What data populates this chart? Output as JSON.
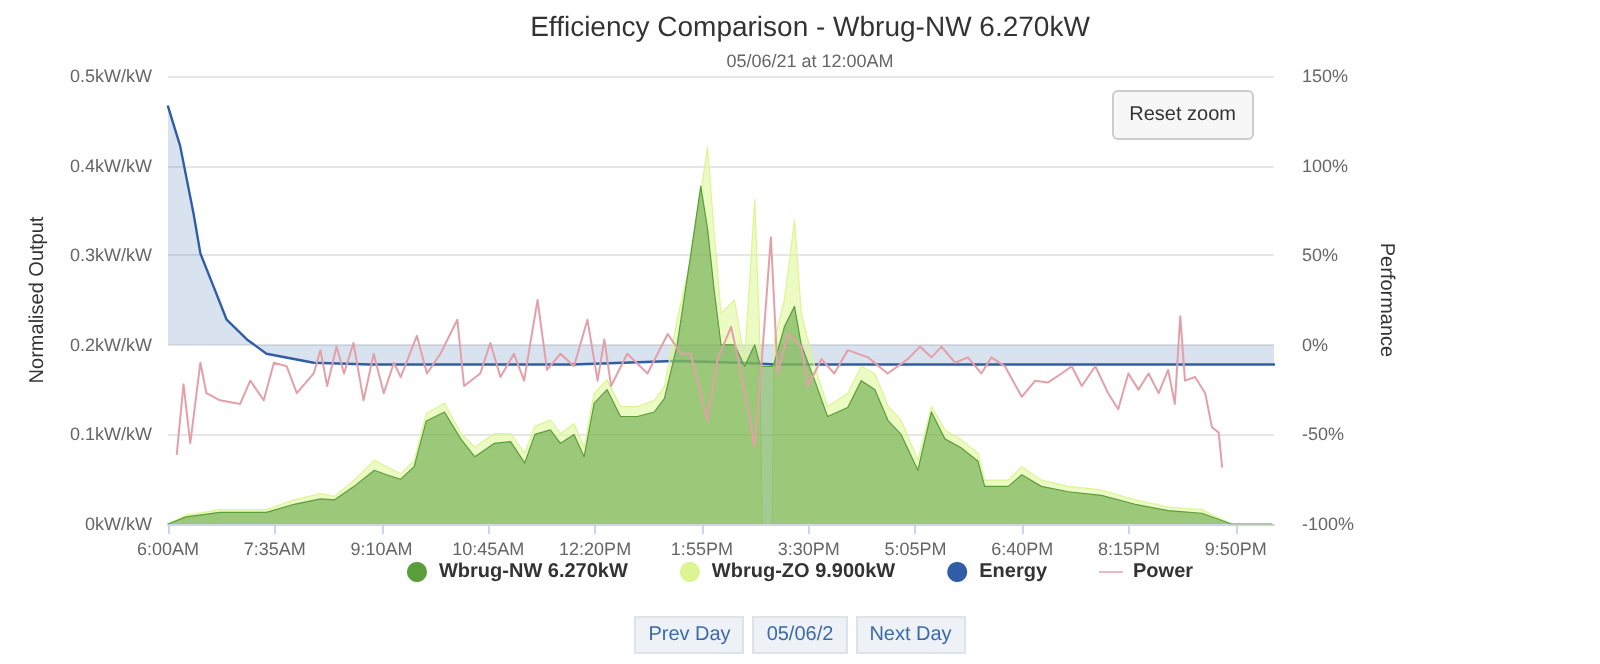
{
  "chart_data": {
    "type": "area",
    "title": "Efficiency Comparison - Wbrug-NW 6.270kW",
    "subtitle": "05/06/21 at 12:00AM",
    "ylabel": "Normalised Output",
    "y2label": "Performance",
    "annotations": [
      "Reset zoom",
      "Prev Day",
      "05/06/2",
      "Next Day"
    ],
    "xlim": [
      6,
      22.4
    ],
    "xticks": [
      {
        "value": 6,
        "label": "6:00AM"
      },
      {
        "value": 7.5833,
        "label": "7:35AM"
      },
      {
        "value": 9.1667,
        "label": "9:10AM"
      },
      {
        "value": 10.75,
        "label": "10:45AM"
      },
      {
        "value": 12.3333,
        "label": "12:20PM"
      },
      {
        "value": 13.9167,
        "label": "1:55PM"
      },
      {
        "value": 15.5,
        "label": "3:30PM"
      },
      {
        "value": 17.0833,
        "label": "5:05PM"
      },
      {
        "value": 18.6667,
        "label": "6:40PM"
      },
      {
        "value": 20.25,
        "label": "8:15PM"
      },
      {
        "value": 21.8333,
        "label": "9:50PM"
      }
    ],
    "ylim": [
      0,
      0.5
    ],
    "yticks": [
      {
        "value": 0,
        "label": "0kW/kW"
      },
      {
        "value": 0.1,
        "label": "0.1kW/kW"
      },
      {
        "value": 0.2,
        "label": "0.2kW/kW"
      },
      {
        "value": 0.3,
        "label": "0.3kW/kW"
      },
      {
        "value": 0.4,
        "label": "0.4kW/kW"
      },
      {
        "value": 0.5,
        "label": "0.5kW/kW"
      }
    ],
    "y2lim": [
      -100,
      150
    ],
    "y2ticks": [
      {
        "value": -100,
        "label": "-100%"
      },
      {
        "value": -50,
        "label": "-50%"
      },
      {
        "value": 0,
        "label": "0%"
      },
      {
        "value": 50,
        "label": "50%"
      },
      {
        "value": 100,
        "label": "100%"
      },
      {
        "value": 150,
        "label": "150%"
      }
    ],
    "grid": "y",
    "legend": "bottom",
    "marker": "none",
    "series": [
      {
        "name": "Wbrug-NW 6.270kW",
        "type": "area",
        "color": "#5a9e3c",
        "x": [
          6,
          6.27,
          6.77,
          7.46,
          7.87,
          8.26,
          8.47,
          8.76,
          9.06,
          9.24,
          9.45,
          9.65,
          9.83,
          10.1,
          10.34,
          10.55,
          10.84,
          11.08,
          11.29,
          11.44,
          11.67,
          11.82,
          12.02,
          12.17,
          12.32,
          12.51,
          12.71,
          12.96,
          13.21,
          13.36,
          13.55,
          13.75,
          13.9,
          14,
          14.1,
          14.2,
          14.4,
          14.55,
          14.7,
          14.77,
          14.81,
          14.96,
          14.99,
          15.14,
          15.29,
          15.39,
          15.59,
          15.78,
          16.08,
          16.28,
          16.48,
          16.68,
          16.87,
          17.12,
          17.32,
          17.52,
          17.76,
          18.01,
          18.11,
          18.46,
          18.66,
          18.95,
          19.35,
          19.84,
          20.34,
          20.83,
          21.33,
          21.77,
          22.37
        ],
        "values": [
          0,
          0.008,
          0.013,
          0.013,
          0.022,
          0.028,
          0.027,
          0.042,
          0.06,
          0.055,
          0.05,
          0.064,
          0.115,
          0.125,
          0.095,
          0.075,
          0.09,
          0.092,
          0.068,
          0.1,
          0.105,
          0.09,
          0.1,
          0.075,
          0.135,
          0.15,
          0.12,
          0.12,
          0.125,
          0.14,
          0.2,
          0.3,
          0.377,
          0.33,
          0.26,
          0.2,
          0.2,
          0.176,
          0.2,
          0.18,
          0.176,
          0.176,
          0.18,
          0.22,
          0.243,
          0.2,
          0.16,
          0.12,
          0.13,
          0.16,
          0.15,
          0.115,
          0.1,
          0.06,
          0.125,
          0.095,
          0.085,
          0.07,
          0.042,
          0.042,
          0.055,
          0.042,
          0.036,
          0.032,
          0.022,
          0.015,
          0.012,
          0,
          0
        ]
      },
      {
        "name": "Wbrug-ZO 9.900kW",
        "type": "area",
        "color": "#dcf592",
        "x": [
          6,
          6.27,
          6.77,
          7.46,
          7.87,
          8.26,
          8.47,
          8.76,
          9.06,
          9.24,
          9.45,
          9.65,
          9.83,
          10.1,
          10.34,
          10.55,
          10.84,
          11.08,
          11.29,
          11.44,
          11.67,
          11.82,
          12.02,
          12.17,
          12.32,
          12.51,
          12.71,
          12.96,
          13.21,
          13.36,
          13.55,
          13.75,
          13.9,
          14,
          14.1,
          14.2,
          14.4,
          14.55,
          14.7,
          14.77,
          14.81,
          14.96,
          14.99,
          15.14,
          15.29,
          15.39,
          15.59,
          15.78,
          16.08,
          16.28,
          16.48,
          16.68,
          16.87,
          17.12,
          17.32,
          17.52,
          17.76,
          18.01,
          18.11,
          18.46,
          18.66,
          18.95,
          19.35,
          19.84,
          20.34,
          20.83,
          21.33,
          21.77,
          22.37
        ],
        "values": [
          0,
          0.01,
          0.016,
          0.016,
          0.027,
          0.034,
          0.031,
          0.049,
          0.071,
          0.064,
          0.056,
          0.071,
          0.123,
          0.135,
          0.101,
          0.086,
          0.101,
          0.101,
          0.079,
          0.109,
          0.116,
          0.101,
          0.112,
          0.086,
          0.146,
          0.161,
          0.131,
          0.131,
          0.138,
          0.153,
          0.228,
          0.295,
          0.369,
          0.421,
          0.324,
          0.235,
          0.25,
          0.183,
          0.362,
          0.22,
          0,
          0,
          0.205,
          0.25,
          0.339,
          0.235,
          0.176,
          0.131,
          0.146,
          0.176,
          0.168,
          0.131,
          0.116,
          0.071,
          0.131,
          0.105,
          0.094,
          0.079,
          0.049,
          0.049,
          0.064,
          0.049,
          0.042,
          0.038,
          0.027,
          0.019,
          0.016,
          0,
          0
        ]
      },
      {
        "name": "Energy",
        "type": "area",
        "axis": "y2",
        "color": "#2f5da6",
        "x": [
          6,
          6.18,
          6.38,
          6.48,
          6.67,
          6.87,
          7.17,
          7.46,
          8.16,
          9,
          10.5,
          12,
          13.5,
          14.5,
          15,
          18,
          22.4
        ],
        "values": [
          133,
          111,
          73,
          51,
          33,
          14,
          3,
          -5,
          -10,
          -11,
          -11,
          -11,
          -9,
          -10,
          -11,
          -11,
          -11
        ]
      },
      {
        "name": "Power",
        "type": "line",
        "axis": "y2",
        "color": "#e3a0a8",
        "x": [
          6.13,
          6.23,
          6.33,
          6.48,
          6.57,
          6.77,
          7.07,
          7.22,
          7.42,
          7.57,
          7.76,
          7.91,
          8.16,
          8.26,
          8.36,
          8.5,
          8.61,
          8.75,
          8.9,
          9.05,
          9.2,
          9.35,
          9.45,
          9.69,
          9.84,
          10.04,
          10.29,
          10.39,
          10.63,
          10.78,
          10.93,
          11.13,
          11.28,
          11.48,
          11.62,
          11.82,
          12.02,
          12.22,
          12.37,
          12.47,
          12.57,
          12.81,
          13.11,
          13.41,
          13.61,
          13.75,
          14,
          14.15,
          14.35,
          14.5,
          14.7,
          14.79,
          14.94,
          15.04,
          15.19,
          15.39,
          15.49,
          15.69,
          15.88,
          16.08,
          16.38,
          16.67,
          16.97,
          17.15,
          17.32,
          17.47,
          17.67,
          17.86,
          18.06,
          18.21,
          18.41,
          18.66,
          18.86,
          19.05,
          19.25,
          19.4,
          19.55,
          19.75,
          19.94,
          20.09,
          20.24,
          20.39,
          20.54,
          20.69,
          20.83,
          20.93,
          21.01,
          21.08,
          21.23,
          21.38,
          21.48,
          21.58,
          21.63
        ],
        "values": [
          -61,
          -22,
          -55,
          -10,
          -27,
          -31,
          -33,
          -20,
          -31,
          -10,
          -12,
          -27,
          -16,
          -3,
          -23,
          -1,
          -16,
          1,
          -31,
          -5,
          -27,
          -10,
          -18,
          5,
          -16,
          -5,
          14,
          -23,
          -16,
          1,
          -18,
          -5,
          -20,
          25,
          -14,
          -5,
          -12,
          14,
          -20,
          3,
          -23,
          -5,
          -16,
          6,
          -5,
          -5,
          -42,
          -8,
          10,
          -16,
          -57,
          -16,
          60,
          -16,
          6,
          -1,
          -23,
          -8,
          -16,
          -3,
          -7,
          -16,
          -8,
          -1,
          -7,
          -1,
          -10,
          -7,
          -16,
          -7,
          -12,
          -29,
          -20,
          -21,
          -16,
          -12,
          -23,
          -12,
          -27,
          -36,
          -16,
          -25,
          -16,
          -27,
          -14,
          -33,
          16,
          -20,
          -18,
          -27,
          -46,
          -49,
          -68
        ]
      }
    ]
  }
}
